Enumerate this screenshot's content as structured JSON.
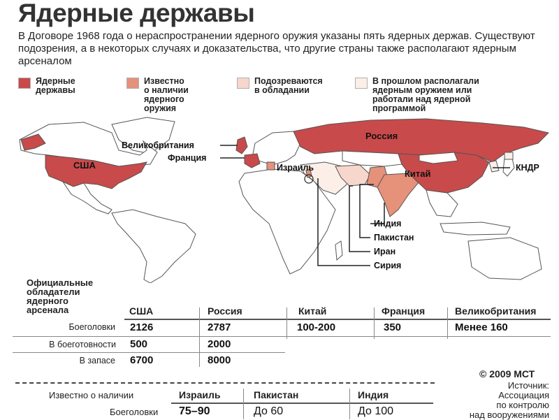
{
  "title": "Ядерные державы",
  "intro": "В Договоре 1968 года о нераспространении ядерного оружия указаны пять ядерных держав. Существуют подозрения, а в некоторых случаях и доказательства, что другие страны также располагают ядерным арсеналом",
  "legend": [
    {
      "label": "Ядерные\nдержавы",
      "color": "#c94a4a"
    },
    {
      "label": "Известно\nо наличии\nядерного\nоружия",
      "color": "#e6917a"
    },
    {
      "label": "Подозреваются\nв обладании",
      "color": "#f7d6cc"
    },
    {
      "label": "В прошлом располагали\nядерным оружием или\nработали над ядерной\nпрограммой",
      "color": "#fbefe8"
    }
  ],
  "map_labels": {
    "usa": "США",
    "russia": "Россия",
    "china": "Китай",
    "uk": "Великобритания",
    "france": "Франция",
    "israel": "Израиль",
    "dprk": "КНДР",
    "india": "Индия",
    "pakistan": "Пакистан",
    "iran": "Иран",
    "syria": "Сирия"
  },
  "colors": {
    "nuclear": "#c94a4a",
    "known": "#e6917a",
    "suspected": "#f7d6cc",
    "past": "#fbefe8",
    "land": "#ffffff",
    "border": "#555555"
  },
  "official": {
    "title": "Официальные\nобладатели\nядерного\nарсенала",
    "columns": [
      "США",
      "Россия",
      "Китай",
      "Франция",
      "Великобритания"
    ],
    "rows": [
      {
        "label": "Боеголовки",
        "values": [
          "2126",
          "2787",
          "100-200",
          "350",
          "Менее 160"
        ]
      },
      {
        "label": "В боеготовности",
        "values": [
          "500",
          "2000",
          "",
          "",
          ""
        ]
      },
      {
        "label": "В запасе",
        "values": [
          "6700",
          "8000",
          "",
          "",
          ""
        ]
      }
    ]
  },
  "known": {
    "label": "Известно о наличии",
    "columns": [
      "Израиль",
      "Пакистан",
      "Индия"
    ],
    "row_label": "Боеголовки",
    "values": [
      "75–90",
      "До 60",
      "До 100"
    ]
  },
  "copyright": "© 2009 МСТ",
  "source": "Источник:\nАссоциация\nпо контролю\nнад вооружениями"
}
